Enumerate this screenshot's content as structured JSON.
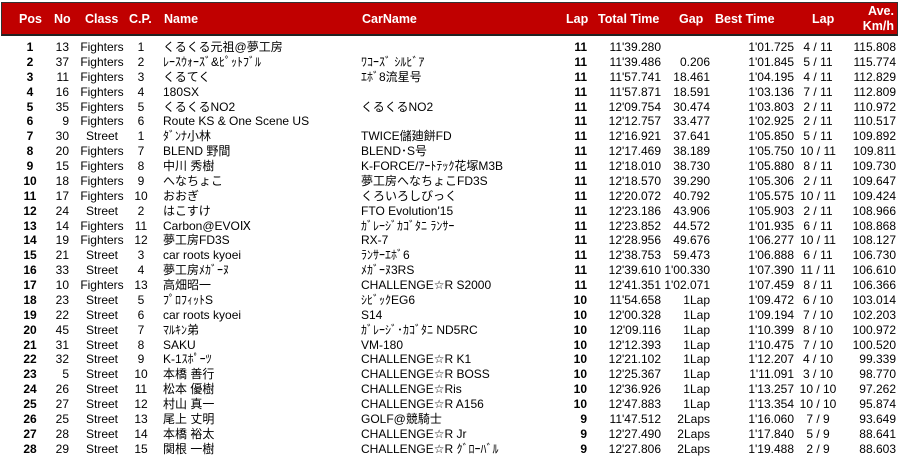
{
  "header": {
    "pos": "Pos",
    "no": "No",
    "class": "Class",
    "cp": "C.P.",
    "name": "Name",
    "carname": "CarName",
    "lap": "Lap",
    "total": "Total Time",
    "gap": "Gap",
    "best": "Best Time",
    "bestlap": "Lap",
    "ave1": "Ave.",
    "ave2": "Km/h"
  },
  "colors": {
    "header_bg": "#c00000",
    "header_text": "#ffffff"
  },
  "rows": [
    [
      "1",
      "13",
      "Fighters",
      "1",
      "くるくる元祖@夢工房",
      "",
      "11",
      "11'39.280",
      "",
      "1'01.725",
      "4 / 11",
      "115.808"
    ],
    [
      "2",
      "37",
      "Fighters",
      "2",
      "ﾚｰｽｳｫｰｽﾞ&ﾋﾟｯﾄﾌﾞﾙ",
      "ﾜｺｰｽﾞ ｼﾙﾋﾞｱ",
      "11",
      "11'39.486",
      "0.206",
      "1'01.845",
      "5 / 11",
      "115.774"
    ],
    [
      "3",
      "11",
      "Fighters",
      "3",
      "くるてく",
      "ｴﾎﾞ8流星号",
      "11",
      "11'57.741",
      "18.461",
      "1'04.195",
      "4 / 11",
      "112.829"
    ],
    [
      "4",
      "16",
      "Fighters",
      "4",
      "180SX",
      "",
      "11",
      "11'57.871",
      "18.591",
      "1'03.136",
      "7 / 11",
      "112.809"
    ],
    [
      "5",
      "35",
      "Fighters",
      "5",
      "くるくるNO2",
      "くるくるNO2",
      "11",
      "12'09.754",
      "30.474",
      "1'03.803",
      "2 / 11",
      "110.972"
    ],
    [
      "6",
      "9",
      "Fighters",
      "6",
      "Route KS & One Scene US",
      "",
      "11",
      "12'12.757",
      "33.477",
      "1'02.925",
      "2 / 11",
      "110.517"
    ],
    [
      "7",
      "30",
      "Street",
      "1",
      "ﾀﾞﾝﾅ小林",
      "TWICE儲廸餅FD",
      "11",
      "12'16.921",
      "37.641",
      "1'05.850",
      "5 / 11",
      "109.892"
    ],
    [
      "8",
      "20",
      "Fighters",
      "7",
      "BLEND 野間",
      "BLEND･S号",
      "11",
      "12'17.469",
      "38.189",
      "1'05.750",
      "10 / 11",
      "109.811"
    ],
    [
      "9",
      "15",
      "Fighters",
      "8",
      "中川 秀樹",
      "K-FORCE/ｱｰﾄﾃｯｸ花塚M3B",
      "11",
      "12'18.010",
      "38.730",
      "1'05.880",
      "8 / 11",
      "109.730"
    ],
    [
      "10",
      "18",
      "Fighters",
      "9",
      "へなちょこ",
      "夢工房へなちょこFD3S",
      "11",
      "12'18.570",
      "39.290",
      "1'05.306",
      "2 / 11",
      "109.647"
    ],
    [
      "11",
      "17",
      "Fighters",
      "10",
      "おおぎ",
      "くろいろしびっく",
      "11",
      "12'20.072",
      "40.792",
      "1'05.575",
      "10 / 11",
      "109.424"
    ],
    [
      "12",
      "24",
      "Street",
      "2",
      "はこすけ",
      "FTO Evolution'15",
      "11",
      "12'23.186",
      "43.906",
      "1'05.903",
      "2 / 11",
      "108.966"
    ],
    [
      "13",
      "14",
      "Fighters",
      "11",
      "Carbon@EVOⅨ",
      "ｶﾞﾚｰｼﾞｶｺﾞﾀﾆ ﾗﾝｻｰ",
      "11",
      "12'23.852",
      "44.572",
      "1'01.935",
      "6 / 11",
      "108.868"
    ],
    [
      "14",
      "19",
      "Fighters",
      "12",
      "夢工房FD3S",
      "RX-7",
      "11",
      "12'28.956",
      "49.676",
      "1'06.277",
      "10 / 11",
      "108.127"
    ],
    [
      "15",
      "21",
      "Street",
      "3",
      "car roots kyoei",
      "ﾗﾝｻｰｴﾎﾞ6",
      "11",
      "12'38.753",
      "59.473",
      "1'06.888",
      "6 / 11",
      "106.730"
    ],
    [
      "16",
      "33",
      "Street",
      "4",
      "夢工房ﾒｶﾞｰﾇ",
      "ﾒｶﾞｰﾇ3RS",
      "11",
      "12'39.610",
      "1'00.330",
      "1'07.390",
      "11 / 11",
      "106.610"
    ],
    [
      "17",
      "10",
      "Fighters",
      "13",
      "高畑昭一",
      "CHALLENGE☆R S2000",
      "11",
      "12'41.351",
      "1'02.071",
      "1'07.459",
      "8 / 11",
      "106.366"
    ],
    [
      "18",
      "23",
      "Street",
      "5",
      "ﾌﾟﾛﾌｨｯﾄS",
      "ｼﾋﾞｯｸEG6",
      "10",
      "11'54.658",
      "1Lap",
      "1'09.472",
      "6 / 10",
      "103.014"
    ],
    [
      "19",
      "22",
      "Street",
      "6",
      "car roots kyoei",
      "S14",
      "10",
      "12'00.328",
      "1Lap",
      "1'09.194",
      "7 / 10",
      "102.203"
    ],
    [
      "20",
      "45",
      "Street",
      "7",
      "ﾏﾙｷﾝ弟",
      "ｶﾞﾚｰｼﾞ･ｶｺﾞﾀﾆ ND5RC",
      "10",
      "12'09.116",
      "1Lap",
      "1'10.399",
      "8 / 10",
      "100.972"
    ],
    [
      "21",
      "31",
      "Street",
      "8",
      "SAKU",
      "VM-180",
      "10",
      "12'12.393",
      "1Lap",
      "1'10.475",
      "7 / 10",
      "100.520"
    ],
    [
      "22",
      "32",
      "Street",
      "9",
      "K-1ｽﾎﾟｰﾂ",
      "CHALLENGE☆R K1",
      "10",
      "12'21.102",
      "1Lap",
      "1'12.207",
      "4 / 10",
      "99.339"
    ],
    [
      "23",
      "5",
      "Street",
      "10",
      "本橋 善行",
      "CHALLENGE☆R BOSS",
      "10",
      "12'25.367",
      "1Lap",
      "1'11.091",
      "3 / 10",
      "98.770"
    ],
    [
      "24",
      "26",
      "Street",
      "11",
      "松本 優樹",
      "CHALLENGE☆Ris",
      "10",
      "12'36.926",
      "1Lap",
      "1'13.257",
      "10 / 10",
      "97.262"
    ],
    [
      "25",
      "27",
      "Street",
      "12",
      "村山 真一",
      "CHALLENGE☆R A156",
      "10",
      "12'47.883",
      "1Lap",
      "1'13.354",
      "10 / 10",
      "95.874"
    ],
    [
      "26",
      "25",
      "Street",
      "13",
      "尾上 丈明",
      "GOLF@競騎士",
      "9",
      "11'47.512",
      "2Laps",
      "1'16.060",
      "7 / 9",
      "93.649"
    ],
    [
      "27",
      "28",
      "Street",
      "14",
      "本橋 裕太",
      "CHALLENGE☆R Jr",
      "9",
      "12'27.490",
      "2Laps",
      "1'17.840",
      "5 / 9",
      "88.641"
    ],
    [
      "28",
      "29",
      "Street",
      "15",
      "関根 一樹",
      "CHALLENGE☆R ｸﾞﾛｰﾊﾞﾙ",
      "9",
      "12'27.806",
      "2Laps",
      "1'19.488",
      "2 / 9",
      "88.603"
    ]
  ]
}
